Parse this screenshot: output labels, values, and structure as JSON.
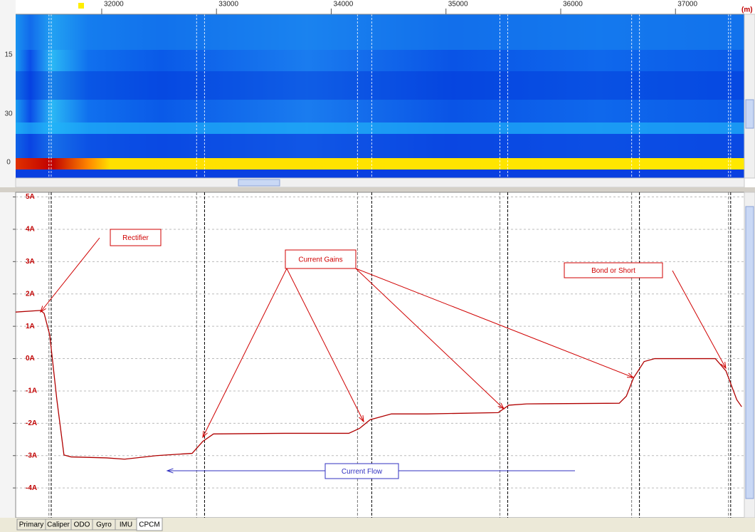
{
  "chart_data": [
    {
      "type": "heatmap",
      "xlim": [
        31250,
        37600
      ],
      "xticks": [
        32000,
        33000,
        34000,
        35000,
        36000,
        37000
      ],
      "x_unit": "(m)",
      "row_labels": [
        "15",
        "30",
        "0"
      ]
    },
    {
      "type": "line",
      "color": "#b00000",
      "grid": true,
      "xlim": [
        31250,
        37600
      ],
      "ylim": [
        -4.9,
        5.1
      ],
      "yticks": [
        {
          "value": 5,
          "label": "5A"
        },
        {
          "value": 4,
          "label": "4A"
        },
        {
          "value": 3,
          "label": "3A"
        },
        {
          "value": 2,
          "label": "2A"
        },
        {
          "value": 1,
          "label": "1A"
        },
        {
          "value": 0,
          "label": "0A"
        },
        {
          "value": -1,
          "label": "-1A"
        },
        {
          "value": -2,
          "label": "-2A"
        },
        {
          "value": -3,
          "label": "-3A"
        },
        {
          "value": -4,
          "label": "-4A"
        }
      ],
      "x": [
        31250,
        31467,
        31498,
        31547,
        31609,
        31671,
        31733,
        32043,
        32199,
        32478,
        32788,
        32881,
        32974,
        33594,
        34153,
        34246,
        34339,
        34525,
        34835,
        35455,
        35548,
        35704,
        36510,
        36572,
        36634,
        36727,
        36820,
        37347,
        37440,
        37534,
        37577
      ],
      "values": [
        1.44,
        1.49,
        1.4,
        0.73,
        -1.27,
        -2.98,
        -3.04,
        -3.07,
        -3.11,
        -3.0,
        -2.93,
        -2.56,
        -2.33,
        -2.31,
        -2.31,
        -2.16,
        -1.89,
        -1.71,
        -1.71,
        -1.67,
        -1.44,
        -1.4,
        -1.38,
        -1.16,
        -0.6,
        -0.09,
        0,
        0,
        -0.38,
        -1.27,
        -1.49
      ],
      "marker_x": [
        31540,
        31560,
        32827,
        32896,
        34229,
        34353,
        35470,
        35538,
        36618,
        36686,
        37462,
        37481
      ],
      "annotations": [
        "Rectifier",
        "Current Gains",
        "Bond or Short",
        "Current Flow"
      ]
    }
  ],
  "tabs": [
    "Primary",
    "Caliper",
    "ODO",
    "Gyro",
    "IMU",
    "CPCM"
  ]
}
